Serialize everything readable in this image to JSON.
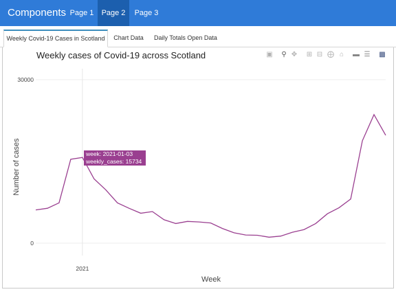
{
  "navbar": {
    "brand": "Components",
    "items": [
      {
        "label": "Page 1",
        "active": false
      },
      {
        "label": "Page 2",
        "active": true
      },
      {
        "label": "Page 3",
        "active": false
      }
    ],
    "color": "#2f7bd8",
    "active_color": "#1c5fae"
  },
  "tabs": [
    {
      "label": "Weekly Covid-19 Cases in Scotland",
      "active": true
    },
    {
      "label": "Chart Data",
      "active": false
    },
    {
      "label": "Daily Totals Open Data",
      "active": false
    }
  ],
  "modebar_icons": [
    "camera-icon",
    "zoom-icon",
    "pan-icon",
    "zoom-in-icon",
    "zoom-out-icon",
    "autoscale-icon",
    "reset-axes-icon",
    "spike-lines-icon",
    "compare-hover-icon",
    "closest-hover-icon",
    "plotly-logo-icon"
  ],
  "tooltip": {
    "line1": "week: 2021-01-03",
    "line2": "weekly_cases:  15734"
  },
  "footer_text": "...",
  "chart_data": {
    "type": "line",
    "title": "Weekly cases of Covid-19 across Scotland",
    "xlabel": "Week",
    "ylabel": "Number of cases",
    "x_tick_labels": [
      "2021"
    ],
    "y_tick_labels": [
      "0",
      "30000"
    ],
    "ylim": [
      0,
      30000
    ],
    "line_color": "#9a3f90",
    "grid": true,
    "series": [
      {
        "values": [
          6100,
          6400,
          7400,
          15400,
          15734,
          11800,
          9800,
          7400,
          6400,
          5500,
          5800,
          4300,
          3600,
          4000,
          3900,
          3700,
          2700,
          1900,
          1500,
          1450,
          1100,
          1300,
          2000,
          2500,
          3600,
          5400,
          6500,
          8100,
          18800,
          23600,
          19800
        ]
      }
    ],
    "x_tick_index": 4
  }
}
